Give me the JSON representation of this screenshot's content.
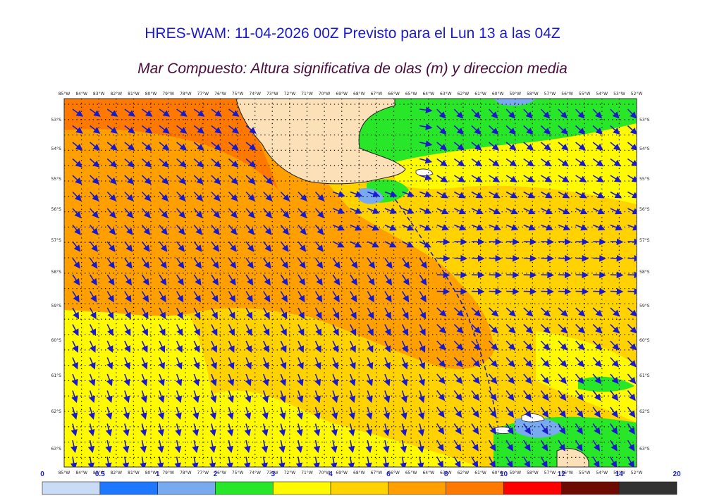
{
  "header": {
    "title": "HRES-WAM: 11-04-2026 00Z Previsto para el Lun 13 a las 04Z",
    "subtitle": "Mar Compuesto: Altura significativa de olas (m) y direccion media"
  },
  "map": {
    "lon_labels": [
      "85°W",
      "84°W",
      "83°W",
      "82°W",
      "81°W",
      "80°W",
      "79°W",
      "78°W",
      "77°W",
      "76°W",
      "75°W",
      "74°W",
      "73°W",
      "72°W",
      "71°W",
      "70°W",
      "69°W",
      "68°W",
      "67°W",
      "66°W",
      "65°W",
      "64°W",
      "63°W",
      "62°W",
      "61°W",
      "60°W",
      "59°W",
      "58°W",
      "57°W",
      "56°W",
      "55°W",
      "54°W",
      "53°W",
      "52°W"
    ],
    "lat_labels": [
      "53°S",
      "54°S",
      "55°S",
      "56°S",
      "57°S",
      "58°S",
      "59°S",
      "60°S",
      "61°S",
      "62°S",
      "63°S"
    ],
    "colors": {
      "land": "#fce0b8",
      "band_0_5": "#c8dcf5",
      "band_0_5_1": "#1e78ff",
      "band_1_2": "#78aaf0",
      "band_2_3": "#28e628",
      "band_3_4": "#fffa00",
      "band_4_6": "#ffd200",
      "band_6_8": "#ffa000",
      "band_8_10": "#ff7800",
      "band_10_12": "#ff0000",
      "band_12_14": "#6e0a00",
      "band_14_20": "#323232",
      "arrow": "#1a1acc"
    }
  },
  "colorbar": {
    "labels": [
      "0",
      "0.5",
      "1",
      "2",
      "3",
      "4",
      "6",
      "8",
      "10",
      "12",
      "14",
      "20"
    ],
    "colors": [
      "#c8dcf5",
      "#1e78ff",
      "#78aaf0",
      "#28e628",
      "#fffa00",
      "#ffd200",
      "#ffa000",
      "#ff7800",
      "#ff0000",
      "#6e0a00",
      "#323232"
    ]
  }
}
